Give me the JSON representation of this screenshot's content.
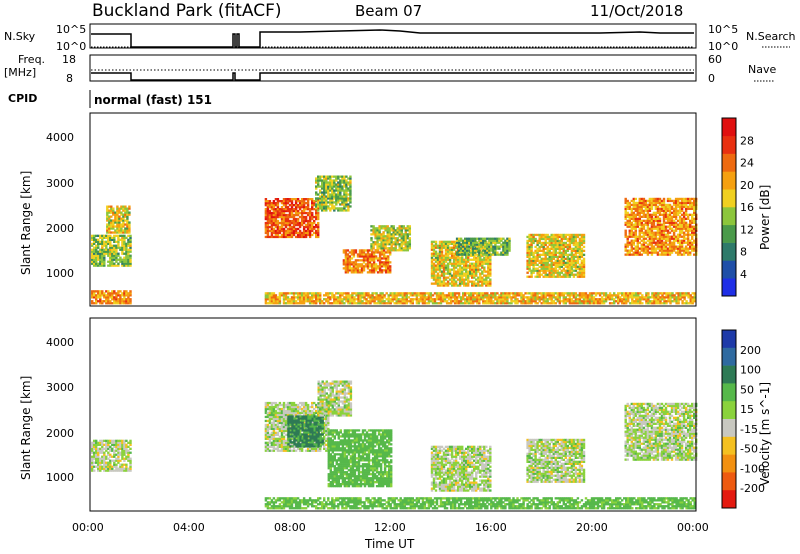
{
  "header": {
    "title": "Buckland Park (fitACF)",
    "beam": "Beam 07",
    "date": "11/Oct/2018"
  },
  "panels": {
    "nsky": {
      "label": "N.Sky",
      "left_ticks": [
        "10^5",
        "10^0"
      ],
      "right_ticks": [
        "10^5",
        "10^0"
      ],
      "right_label": "N.Search"
    },
    "freq": {
      "label_line1": "Freq.",
      "label_line2": "[MHz]",
      "left_ticks": [
        "18",
        "8"
      ],
      "right_ticks": [
        "60",
        "0"
      ],
      "right_label": "Nave"
    },
    "cpid": {
      "label": "CPID",
      "value": "normal (fast) 151"
    }
  },
  "x_axis": {
    "label": "Time UT",
    "ticks": [
      "00:00",
      "04:00",
      "08:00",
      "12:00",
      "16:00",
      "20:00",
      "00:00"
    ]
  },
  "y_axis": {
    "label": "Slant Range [km]",
    "ticks": [
      "1000",
      "2000",
      "3000",
      "4000"
    ]
  },
  "power_bar": {
    "label": "Power [dB]",
    "ticks": [
      "4",
      "8",
      "12",
      "16",
      "20",
      "24",
      "28"
    ],
    "colors": [
      "#1f2fe6",
      "#1f4fa8",
      "#2e7a6a",
      "#4a9a4a",
      "#8cc63c",
      "#f0d020",
      "#f5a010",
      "#ee6a10",
      "#e83010",
      "#e01010"
    ]
  },
  "velocity_bar": {
    "label": "Velocity [m s^-1]",
    "ticks": [
      "200",
      "100",
      "50",
      "15",
      "-15",
      "-50",
      "-100",
      "-200"
    ],
    "colors": [
      "#1e3aa8",
      "#2f6aa0",
      "#2e7a55",
      "#56b84a",
      "#8ad23c",
      "#c8c8c0",
      "#f4c020",
      "#f29010",
      "#ee5a10",
      "#e41a10"
    ]
  },
  "chart_data": {
    "type": "heatmap",
    "x": [
      "00:00",
      "04:00",
      "08:00",
      "12:00",
      "16:00",
      "20:00",
      "00:00"
    ],
    "y_range_km": [
      180,
      4500
    ],
    "power": {
      "regions": [
        {
          "t_start": 0.0,
          "t_end": 1.6,
          "r_min": 1050,
          "r_max": 1750,
          "value_db": 14
        },
        {
          "t_start": 0.6,
          "t_end": 1.5,
          "r_min": 1800,
          "r_max": 2400,
          "value_db": 18
        },
        {
          "t_start": 0.0,
          "t_end": 1.6,
          "r_min": 200,
          "r_max": 500,
          "value_db": 22
        },
        {
          "t_start": 6.9,
          "t_end": 9.0,
          "r_min": 1700,
          "r_max": 2600,
          "value_db": 26
        },
        {
          "t_start": 8.9,
          "t_end": 10.3,
          "r_min": 2300,
          "r_max": 3100,
          "value_db": 14
        },
        {
          "t_start": 10.0,
          "t_end": 11.9,
          "r_min": 900,
          "r_max": 1400,
          "value_db": 24
        },
        {
          "t_start": 11.1,
          "t_end": 12.7,
          "r_min": 1400,
          "r_max": 1950,
          "value_db": 16
        },
        {
          "t_start": 13.5,
          "t_end": 15.9,
          "r_min": 600,
          "r_max": 1600,
          "value_db": 18
        },
        {
          "t_start": 14.5,
          "t_end": 16.6,
          "r_min": 1300,
          "r_max": 1700,
          "value_db": 12
        },
        {
          "t_start": 17.3,
          "t_end": 19.6,
          "r_min": 800,
          "r_max": 1750,
          "value_db": 18
        },
        {
          "t_start": 21.2,
          "t_end": 24.0,
          "r_min": 1300,
          "r_max": 2600,
          "value_db": 22
        },
        {
          "t_start": 6.9,
          "t_end": 24.0,
          "r_min": 200,
          "r_max": 450,
          "value_db": 20
        }
      ]
    },
    "velocity": {
      "regions": [
        {
          "t_start": 0.0,
          "t_end": 1.6,
          "r_min": 1050,
          "r_max": 1750,
          "value_ms": 0
        },
        {
          "t_start": 6.9,
          "t_end": 9.4,
          "r_min": 1500,
          "r_max": 2600,
          "value_ms": 0
        },
        {
          "t_start": 7.8,
          "t_end": 9.2,
          "r_min": 1600,
          "r_max": 2300,
          "value_ms": 60
        },
        {
          "t_start": 9.0,
          "t_end": 10.3,
          "r_min": 2300,
          "r_max": 3100,
          "value_ms": 0
        },
        {
          "t_start": 9.4,
          "t_end": 11.9,
          "r_min": 700,
          "r_max": 2000,
          "value_ms": 30
        },
        {
          "t_start": 13.5,
          "t_end": 15.9,
          "r_min": 600,
          "r_max": 1600,
          "value_ms": 0
        },
        {
          "t_start": 17.3,
          "t_end": 19.6,
          "r_min": 800,
          "r_max": 1750,
          "value_ms": 0
        },
        {
          "t_start": 21.2,
          "t_end": 24.0,
          "r_min": 1300,
          "r_max": 2600,
          "value_ms": 0
        },
        {
          "t_start": 6.9,
          "t_end": 24.0,
          "r_min": 200,
          "r_max": 450,
          "value_ms": 25
        }
      ]
    }
  }
}
